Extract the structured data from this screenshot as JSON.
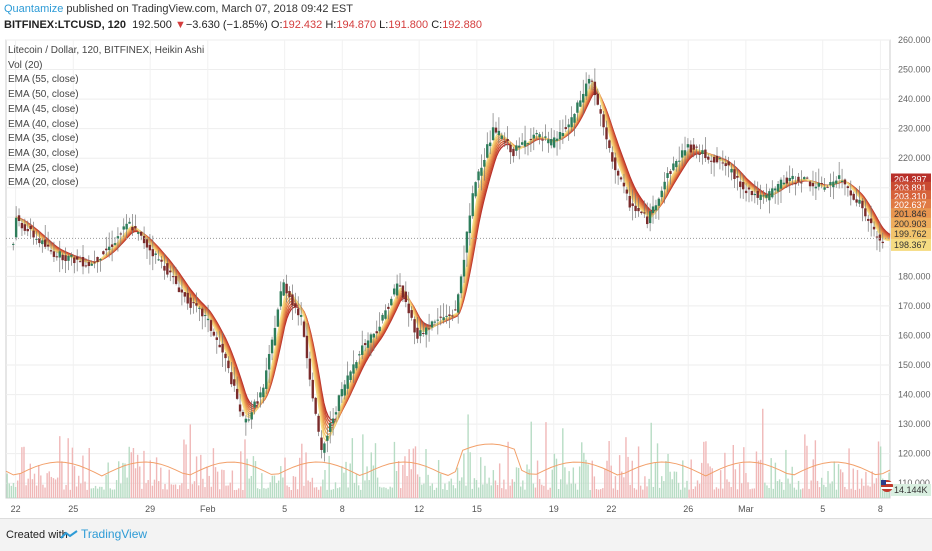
{
  "header": {
    "brand": "Quantamize",
    "published": "published on TradingView.com, March 07, 2018 09:42 EST",
    "symbol": "BITFINEX:LTCUSD, 120",
    "last": "192.500",
    "change": "−3.630 (−1.85%)",
    "open_label": "O:",
    "open": "192.432",
    "high_label": "H:",
    "high": "194.870",
    "low_label": "L:",
    "low": "191.800",
    "close_label": "C:",
    "close": "192.880"
  },
  "legend": [
    "Litecoin / Dollar, 120, BITFINEX, Heikin Ashi",
    "Vol (20)",
    "EMA (55, close)",
    "EMA (50, close)",
    "EMA (45, close)",
    "EMA (40, close)",
    "EMA (35, close)",
    "EMA (30, close)",
    "EMA (25, close)",
    "EMA (20, close)"
  ],
  "footer": {
    "created": "Created with",
    "brand": "TradingView"
  },
  "colors": {
    "up": "#2e7d5b",
    "down": "#7a2b2b",
    "ema": [
      "#b8302a",
      "#c94a32",
      "#d6623a",
      "#e07a44",
      "#e89550",
      "#eeac5c",
      "#f2c46c",
      "#f5dc82"
    ],
    "vol_up": "#b7dcc4",
    "vol_down": "#f0b8b8",
    "vol_ma": "#f2a06a"
  },
  "chart_data": {
    "type": "candlestick",
    "y_ticks": [
      "260.000",
      "250.000",
      "240.000",
      "230.000",
      "220.000",
      "210.000",
      "200.000",
      "190.000",
      "180.000",
      "170.000",
      "160.000",
      "150.000",
      "140.000",
      "130.000",
      "120.000",
      "110.000"
    ],
    "ylim": [
      105,
      260
    ],
    "x_ticks": [
      "22",
      "25",
      "29",
      "Feb",
      "5",
      "8",
      "12",
      "15",
      "19",
      "22",
      "26",
      "Mar",
      "5",
      "8"
    ],
    "x_tick_pos": [
      0,
      3,
      7,
      10,
      14,
      17,
      21,
      24,
      28,
      31,
      35,
      38,
      42,
      45
    ],
    "x_range": [
      -0.5,
      45.5
    ],
    "price_path": [
      [
        0,
        200
      ],
      [
        1,
        194
      ],
      [
        2,
        188
      ],
      [
        3,
        186
      ],
      [
        4,
        184
      ],
      [
        5,
        190
      ],
      [
        6,
        198
      ],
      [
        7,
        190
      ],
      [
        8,
        182
      ],
      [
        9,
        172
      ],
      [
        10,
        166
      ],
      [
        11,
        152
      ],
      [
        12,
        130
      ],
      [
        13,
        142
      ],
      [
        14,
        178
      ],
      [
        15,
        165
      ],
      [
        16,
        120
      ],
      [
        17,
        140
      ],
      [
        18,
        155
      ],
      [
        19,
        163
      ],
      [
        20,
        178
      ],
      [
        21,
        160
      ],
      [
        22,
        165
      ],
      [
        23,
        168
      ],
      [
        24,
        212
      ],
      [
        25,
        230
      ],
      [
        26,
        222
      ],
      [
        27,
        228
      ],
      [
        28,
        225
      ],
      [
        29,
        232
      ],
      [
        30,
        248
      ],
      [
        31,
        222
      ],
      [
        32,
        205
      ],
      [
        33,
        199
      ],
      [
        34,
        214
      ],
      [
        35,
        224
      ],
      [
        36,
        221
      ],
      [
        37,
        218
      ],
      [
        38,
        210
      ],
      [
        39,
        206
      ],
      [
        40,
        212
      ],
      [
        41,
        213
      ],
      [
        42,
        210
      ],
      [
        43,
        213
      ],
      [
        44,
        205
      ],
      [
        45,
        192
      ]
    ],
    "ema_values": [
      204.397,
      203.891,
      203.31,
      202.637,
      201.846,
      200.903,
      199.762,
      198.367
    ],
    "ema_labels": [
      "204.397",
      "203.891",
      "203.310",
      "202.637",
      "201.846",
      "200.903",
      "199.762",
      "198.367"
    ],
    "volume_label": "14.144K",
    "last_price": 192.88
  }
}
